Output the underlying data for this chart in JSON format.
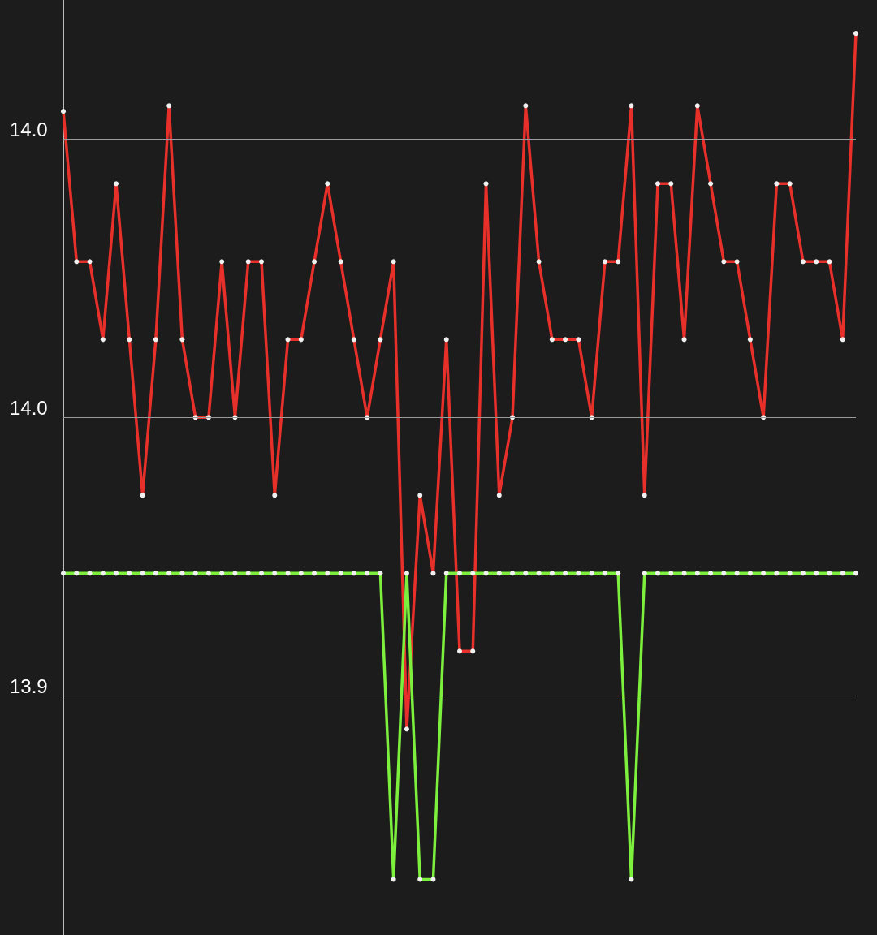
{
  "chart_data": {
    "type": "line",
    "categories": [
      null,
      null,
      null,
      null,
      null,
      null,
      null,
      null,
      null,
      null,
      null,
      null,
      null,
      null,
      null,
      null,
      null,
      null,
      null,
      null,
      null,
      null,
      null,
      null,
      null,
      null,
      null,
      null,
      null,
      null,
      null,
      null,
      null,
      null,
      null,
      null,
      null,
      null,
      null,
      null,
      null,
      null,
      null,
      null,
      null,
      null,
      null,
      null,
      null,
      null,
      null,
      null,
      null,
      null,
      null,
      null,
      null,
      null,
      null,
      null,
      null
    ],
    "series": [
      {
        "color": "#e8302a",
        "values": [
          14.005,
          13.978,
          13.978,
          13.964,
          13.992,
          13.964,
          13.936,
          13.964,
          14.006,
          13.964,
          13.95,
          13.95,
          13.978,
          13.95,
          13.978,
          13.978,
          13.936,
          13.964,
          13.964,
          13.978,
          13.992,
          13.978,
          13.964,
          13.95,
          13.964,
          13.978,
          13.894,
          13.936,
          13.922,
          13.964,
          13.908,
          13.908,
          13.992,
          13.936,
          13.95,
          14.006,
          13.978,
          13.964,
          13.964,
          13.964,
          13.95,
          13.978,
          13.978,
          14.006,
          13.936,
          13.992,
          13.992,
          13.964,
          14.006,
          13.992,
          13.978,
          13.978,
          13.964,
          13.95,
          13.992,
          13.992,
          13.978,
          13.978,
          13.978,
          13.964,
          14.019
        ]
      },
      {
        "color": "#7cf03c",
        "values": [
          13.922,
          13.922,
          13.922,
          13.922,
          13.922,
          13.922,
          13.922,
          13.922,
          13.922,
          13.922,
          13.922,
          13.922,
          13.922,
          13.922,
          13.922,
          13.922,
          13.922,
          13.922,
          13.922,
          13.922,
          13.922,
          13.922,
          13.922,
          13.922,
          13.922,
          13.867,
          13.922,
          13.867,
          13.867,
          13.922,
          13.922,
          13.922,
          13.922,
          13.922,
          13.922,
          13.922,
          13.922,
          13.922,
          13.922,
          13.922,
          13.922,
          13.922,
          13.922,
          13.867,
          13.922,
          13.922,
          13.922,
          13.922,
          13.922,
          13.922,
          13.922,
          13.922,
          13.922,
          13.922,
          13.922,
          13.922,
          13.922,
          13.922,
          13.922,
          13.922,
          13.922
        ]
      }
    ],
    "ylim": [
      13.857,
      14.025
    ],
    "yticks": [
      {
        "value": 14.0,
        "label": "14.0"
      },
      {
        "value": 13.95,
        "label": "14.0"
      },
      {
        "value": 13.9,
        "label": "13.9"
      }
    ],
    "grid": "y",
    "marker": "circle",
    "line_style": "solid",
    "tick_labels": "y"
  }
}
